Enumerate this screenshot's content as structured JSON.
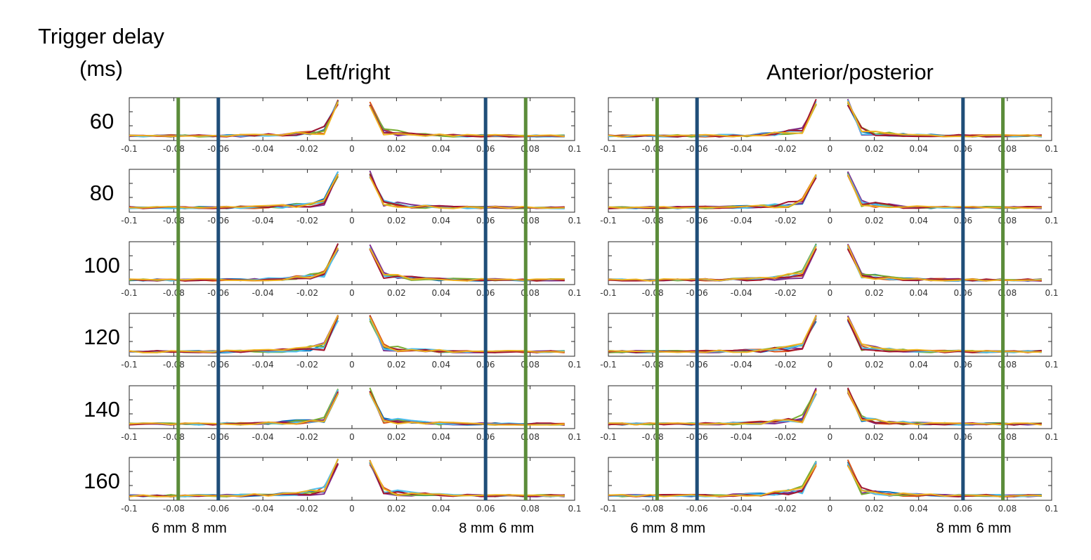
{
  "header": {
    "delay_label_line1": "Trigger delay",
    "delay_label_line2": "(ms)"
  },
  "colors": {
    "green_line": "#5b8c3a",
    "blue_line": "#1f4e79",
    "series": [
      "#0072bd",
      "#d95319",
      "#7e2f8e",
      "#77ac30",
      "#4dbeee",
      "#a2142f",
      "#edb120"
    ]
  },
  "chart_data": [
    {
      "type": "line",
      "title": "Left/right",
      "x_ticks": [
        -0.1,
        -0.08,
        -0.06,
        -0.04,
        -0.02,
        0,
        0.02,
        0.04,
        0.06,
        0.08,
        0.1
      ],
      "x_tick_labels": [
        "-0.1",
        "-0.08",
        "-0.06",
        "-0.04",
        "-0.02",
        "0",
        "0.02",
        "0.04",
        "0.06",
        "0.08",
        "0.1"
      ],
      "xlim": [
        -0.1,
        0.1
      ],
      "rows": [
        "60",
        "80",
        "100",
        "120",
        "140",
        "160"
      ],
      "reference_lines": [
        {
          "x": -0.078,
          "label": "6 mm",
          "color": "green"
        },
        {
          "x": -0.06,
          "label": "8 mm",
          "color": "blue"
        },
        {
          "x": 0.06,
          "label": "8 mm",
          "color": "blue"
        },
        {
          "x": 0.078,
          "label": "6 mm",
          "color": "green"
        }
      ]
    },
    {
      "type": "line",
      "title": "Anterior/posterior",
      "x_ticks": [
        -0.1,
        -0.08,
        -0.06,
        -0.04,
        -0.02,
        0,
        0.02,
        0.04,
        0.06,
        0.08,
        0.1
      ],
      "x_tick_labels": [
        "-0.1",
        "-0.08",
        "-0.06",
        "-0.04",
        "-0.02",
        "0",
        "0.02",
        "0.04",
        "0.06",
        "0.08",
        "0.1"
      ],
      "xlim": [
        -0.1,
        0.1
      ],
      "rows": [
        "60",
        "80",
        "100",
        "120",
        "140",
        "160"
      ],
      "reference_lines": [
        {
          "x": -0.078,
          "label": "6 mm",
          "color": "green"
        },
        {
          "x": -0.06,
          "label": "8 mm",
          "color": "blue"
        },
        {
          "x": 0.06,
          "label": "8 mm",
          "color": "blue"
        },
        {
          "x": 0.078,
          "label": "6 mm",
          "color": "green"
        }
      ]
    }
  ]
}
